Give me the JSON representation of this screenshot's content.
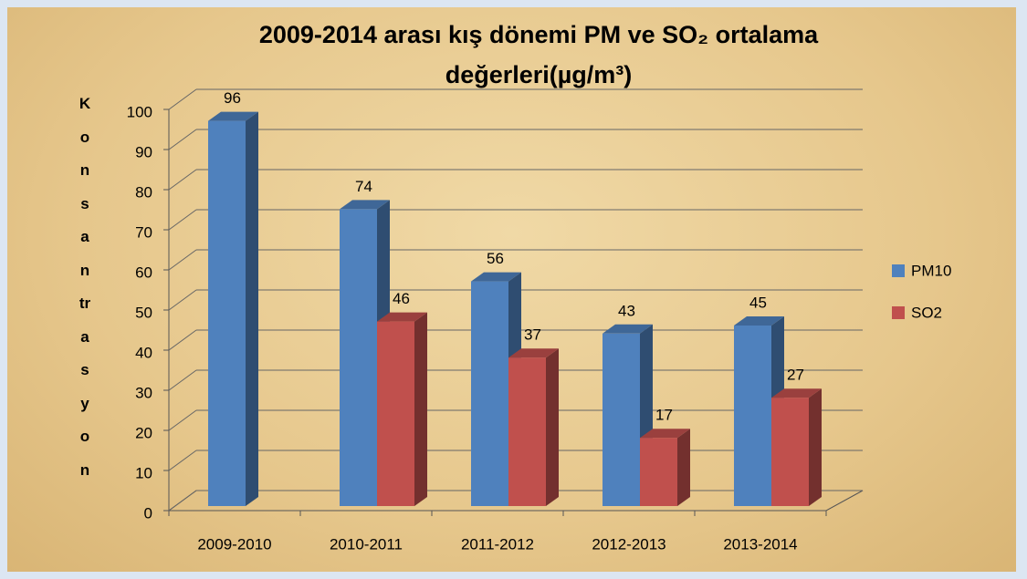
{
  "chart_data": {
    "type": "bar3d",
    "title": "2009-2014 arası kış dönemi PM ve SO₂ ortalama değerleri(µg/m³)",
    "y_label": "Konsantrasyon",
    "categories": [
      "2009-2010",
      "2010-2011",
      "2011-2012",
      "2012-2013",
      "2013-2014"
    ],
    "series": [
      {
        "name": "PM10",
        "color": "#4f81bd",
        "values": [
          96,
          74,
          56,
          43,
          45
        ]
      },
      {
        "name": "SO2",
        "color": "#c0504d",
        "values": [
          null,
          46,
          37,
          17,
          27
        ]
      }
    ],
    "ylim": [
      0,
      100
    ],
    "yticks": [
      0,
      10,
      20,
      30,
      40,
      50,
      60,
      70,
      80,
      90,
      100
    ],
    "grid": true,
    "legend": "right"
  }
}
